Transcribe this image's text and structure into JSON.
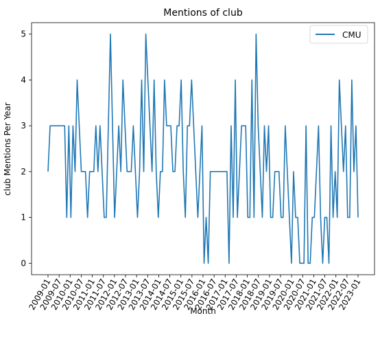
{
  "chart_data": {
    "type": "line",
    "title": "Mentions of club",
    "xlabel": "Month",
    "ylabel": "club Mentions Per Year",
    "ylim": [
      -0.25,
      5.25
    ],
    "yticks": [
      0,
      1,
      2,
      3,
      4,
      5
    ],
    "grid": false,
    "legend_position": "upper-right",
    "x_tick_labels": [
      "2009-01",
      "2009-07",
      "2010-01",
      "2010-07",
      "2011-01",
      "2011-07",
      "2012-01",
      "2012-07",
      "2013-01",
      "2013-07",
      "2014-01",
      "2014-07",
      "2015-01",
      "2015-07",
      "2016-01",
      "2016-07",
      "2017-01",
      "2017-07",
      "2018-01",
      "2018-07",
      "2019-01",
      "2019-07",
      "2020-01",
      "2020-07",
      "2021-01",
      "2021-07",
      "2022-01",
      "2022-07",
      "2023-01"
    ],
    "series": [
      {
        "name": "CMU",
        "color": "#1f77b4",
        "values": [
          2,
          3,
          3,
          3,
          3,
          3,
          3,
          3,
          3,
          1,
          3,
          1,
          3,
          2,
          4,
          3,
          2,
          2,
          2,
          1,
          2,
          2,
          2,
          3,
          2,
          3,
          2,
          1,
          1,
          3,
          5,
          3,
          1,
          2,
          3,
          2,
          4,
          3,
          2,
          2,
          2,
          3,
          2,
          1,
          2,
          4,
          2,
          5,
          4,
          3,
          2,
          4,
          2,
          1,
          2,
          2,
          4,
          3,
          3,
          3,
          2,
          2,
          3,
          3,
          4,
          2,
          1,
          3,
          3,
          4,
          3,
          2,
          1,
          2,
          3,
          0,
          1,
          0,
          2,
          2,
          2,
          2,
          2,
          2,
          2,
          2,
          2,
          0,
          3,
          1,
          4,
          1,
          2,
          3,
          3,
          3,
          1,
          1,
          4,
          1,
          5,
          3,
          2,
          1,
          3,
          2,
          3,
          1,
          1,
          2,
          2,
          2,
          1,
          1,
          3,
          2,
          1,
          0,
          2,
          1,
          1,
          0,
          0,
          0,
          3,
          0,
          0,
          1,
          1,
          2,
          3,
          1,
          0,
          1,
          1,
          0,
          3,
          1,
          2,
          1,
          4,
          3,
          2,
          3,
          1,
          1,
          4,
          2,
          3,
          1
        ]
      }
    ]
  }
}
